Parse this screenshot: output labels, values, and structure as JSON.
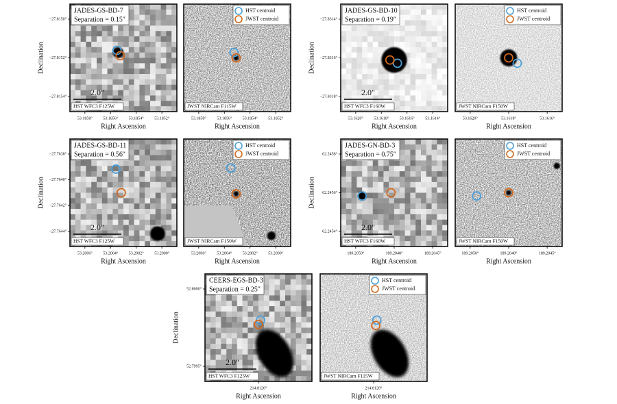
{
  "figure": {
    "legend": {
      "hst": "HST centroid",
      "jwst": "JWST centroid"
    },
    "xlabel": "Right Ascension",
    "ylabel": "Declination",
    "panels": [
      {
        "name": "JADES-GS-BD-7",
        "separation": "Separation = 0.15″",
        "scalebar": "2.0″",
        "hst_filter": "HST WFC3 F125W",
        "jwst_filter": "JWST NIRCam F115W",
        "yticks": [
          "−27.8150°",
          "−27.8152°",
          "−27.8154°"
        ],
        "hst_xticks": [
          "53.1858°",
          "53.1856°",
          "53.1854°",
          "53.1852°"
        ],
        "jwst_xticks": [
          "53.1858°",
          "53.1856°",
          "53.1854°",
          "53.1852°"
        ]
      },
      {
        "name": "JADES-GS-BD-10",
        "separation": "Separation = 0.19″",
        "scalebar": "2.0″",
        "hst_filter": "HST WFC3 F160W",
        "jwst_filter": "JWST NIRCam F150W",
        "yticks": [
          "−27.8314°",
          "−27.8316°",
          "−27.8318°"
        ],
        "hst_xticks": [
          "53.1620°",
          "53.1618°",
          "53.1616°",
          "53.1614°"
        ],
        "jwst_xticks": [
          "53.1620°",
          "53.1618°",
          "53.1616°"
        ]
      },
      {
        "name": "JADES-GS-BD-11",
        "separation": "Separation = 0.56″",
        "scalebar": "2.0″",
        "hst_filter": "HST WFC3 F125W",
        "jwst_filter": "JWST NIRCam F150W",
        "yticks": [
          "−27.7638°",
          "−27.7640°",
          "−27.7642°",
          "−27.7644°"
        ],
        "hst_xticks": [
          "53.2006°",
          "53.2004°",
          "53.2002°",
          "53.2000°"
        ],
        "jwst_xticks": [
          "53.2006°",
          "53.2004°",
          "53.2002°",
          "53.2000°"
        ]
      },
      {
        "name": "JADES-GN-BD-3",
        "separation": "Separation = 0.75″",
        "scalebar": "2.0″",
        "hst_filter": "HST WFC3 F160W",
        "jwst_filter": "JWST NIRCam F150W",
        "yticks": [
          "62.2458°",
          "62.2456°",
          "62.2454°"
        ],
        "hst_xticks": [
          "189.2050°",
          "189.2048°",
          "189.2045°"
        ],
        "jwst_xticks": [
          "189.2050°",
          "189.2048°",
          "189.2045°"
        ]
      },
      {
        "name": "CEERS-EGS-BD-3",
        "separation": "Separation = 0.25″",
        "scalebar": "2.0″",
        "hst_filter": "HST WFC3 F125W",
        "jwst_filter": "JWST NIRCam F115W",
        "yticks": [
          "52.8000°",
          "52.7995°"
        ],
        "hst_xticks": [
          "214.8120°"
        ],
        "jwst_xticks": [
          "214.8120°"
        ]
      }
    ]
  }
}
